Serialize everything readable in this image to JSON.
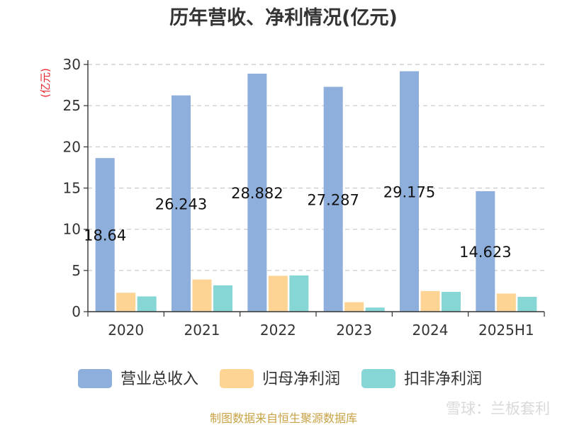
{
  "title": "历年营收、净利情况(亿元)",
  "unit_label": "(亿元)",
  "source_text": "制图数据来自恒生聚源数据库",
  "watermark": "雪球：兰板套利",
  "chart_data": {
    "type": "bar",
    "categories": [
      "2020",
      "2021",
      "2022",
      "2023",
      "2024",
      "2025H1"
    ],
    "series": [
      {
        "name": "营业总收入",
        "color": "#8eaedb",
        "values": [
          18.64,
          26.243,
          28.882,
          27.287,
          29.175,
          14.623
        ],
        "labels": [
          "18.64",
          "26.243",
          "28.882",
          "27.287",
          "29.175",
          "14.623"
        ]
      },
      {
        "name": "归母净利润",
        "color": "#fdd494",
        "values": [
          2.3,
          3.9,
          4.35,
          1.15,
          2.5,
          2.2
        ]
      },
      {
        "name": "扣非净利润",
        "color": "#87d6d6",
        "values": [
          1.85,
          3.2,
          4.4,
          0.5,
          2.4,
          1.8
        ]
      }
    ],
    "yticks": [
      "0",
      "5",
      "10",
      "15",
      "20",
      "25",
      "30"
    ],
    "ylim": [
      0,
      30
    ],
    "grid": true,
    "legend_position": "bottom"
  }
}
